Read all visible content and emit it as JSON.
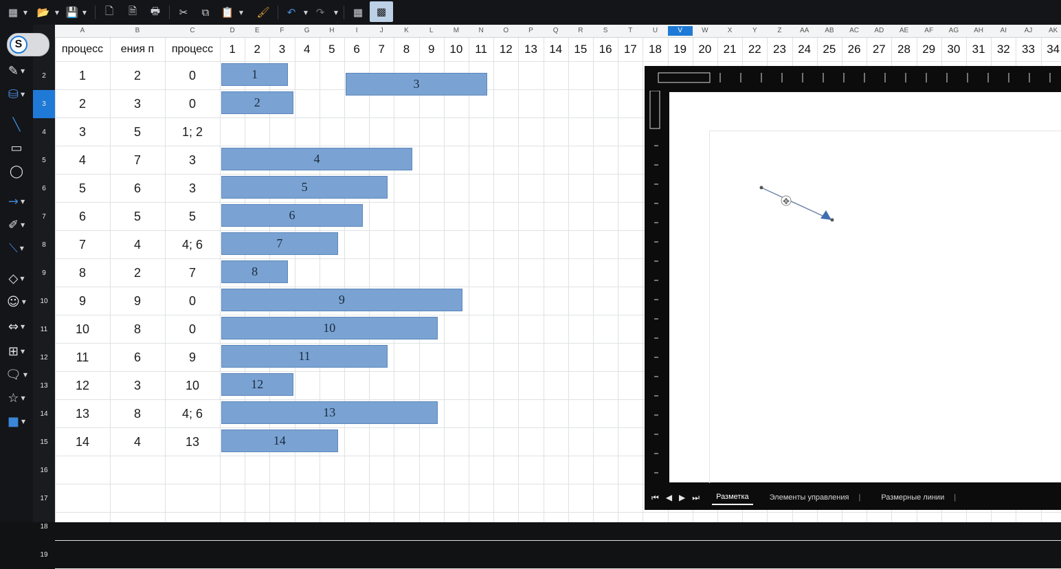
{
  "toolbar": {
    "icons": [
      "new-sheet-icon",
      "open-icon",
      "save-icon",
      "export-pdf-icon",
      "export-direct-icon",
      "print-icon",
      "cut-icon",
      "copy-icon",
      "paste-icon",
      "clone-format-icon",
      "undo-icon",
      "redo-icon",
      "grid-icon",
      "insert-image-icon"
    ]
  },
  "app_badge": "S",
  "columns": {
    "letters": [
      "A",
      "B",
      "C",
      "D",
      "E",
      "F",
      "G",
      "H",
      "I",
      "J",
      "K",
      "L",
      "M",
      "N",
      "O",
      "P",
      "Q",
      "R",
      "S",
      "T",
      "U",
      "V",
      "W",
      "X",
      "Y",
      "Z",
      "AA",
      "AB",
      "AC",
      "AD",
      "AE",
      "AF",
      "AG",
      "AH",
      "AI",
      "AJ",
      "AK"
    ],
    "selected": "V"
  },
  "rows": {
    "numbers": [
      "2",
      "3",
      "4",
      "5",
      "6",
      "7",
      "8",
      "9",
      "10",
      "11",
      "12",
      "13",
      "14",
      "15",
      "16",
      "17",
      "18",
      "19"
    ],
    "selected": "3"
  },
  "header_row": {
    "a": "процесс",
    "b": "ения п",
    "c": "процесс",
    "timeline": [
      "1",
      "2",
      "3",
      "4",
      "5",
      "6",
      "7",
      "8",
      "9",
      "10",
      "11",
      "12",
      "13",
      "14",
      "15",
      "16",
      "17",
      "18",
      "19",
      "20",
      "21",
      "22",
      "23",
      "24",
      "25",
      "26",
      "27",
      "28",
      "29",
      "30",
      "31",
      "32",
      "33",
      "34"
    ]
  },
  "table": [
    {
      "a": "1",
      "b": "2",
      "c": "0"
    },
    {
      "a": "2",
      "b": "3",
      "c": "0"
    },
    {
      "a": "3",
      "b": "5",
      "c": "1; 2"
    },
    {
      "a": "4",
      "b": "7",
      "c": "3"
    },
    {
      "a": "5",
      "b": "6",
      "c": "3"
    },
    {
      "a": "6",
      "b": "5",
      "c": "5"
    },
    {
      "a": "7",
      "b": "4",
      "c": "4; 6"
    },
    {
      "a": "8",
      "b": "2",
      "c": "7"
    },
    {
      "a": "9",
      "b": "9",
      "c": "0"
    },
    {
      "a": "10",
      "b": "8",
      "c": "0"
    },
    {
      "a": "11",
      "b": "6",
      "c": "9"
    },
    {
      "a": "12",
      "b": "3",
      "c": "10"
    },
    {
      "a": "13",
      "b": "8",
      "c": "4; 6"
    },
    {
      "a": "14",
      "b": "4",
      "c": "13"
    }
  ],
  "gantt_bars": [
    {
      "label": "1",
      "row": 0,
      "start": 1,
      "end": 2.8
    },
    {
      "label": "2",
      "row": 1,
      "start": 1,
      "end": 3
    },
    {
      "label": "3",
      "row": 0.35,
      "start": 6,
      "end": 10.8
    },
    {
      "label": "4",
      "row": 3,
      "start": 1,
      "end": 7.8
    },
    {
      "label": "5",
      "row": 4,
      "start": 1,
      "end": 6.8
    },
    {
      "label": "6",
      "row": 5,
      "start": 1,
      "end": 5.8
    },
    {
      "label": "7",
      "row": 6,
      "start": 1,
      "end": 4.8
    },
    {
      "label": "8",
      "row": 7,
      "start": 1,
      "end": 2.8
    },
    {
      "label": "9",
      "row": 8,
      "start": 1,
      "end": 9.8
    },
    {
      "label": "10",
      "row": 9,
      "start": 1,
      "end": 8.8
    },
    {
      "label": "11",
      "row": 10,
      "start": 1,
      "end": 6.8
    },
    {
      "label": "12",
      "row": 11,
      "start": 1,
      "end": 3
    },
    {
      "label": "13",
      "row": 12,
      "start": 1,
      "end": 8.8
    },
    {
      "label": "14",
      "row": 13,
      "start": 1,
      "end": 4.8
    }
  ],
  "bar_color": "#7aa3d3",
  "left_tools": [
    "pen-color-icon",
    "fill-color-icon",
    "line-icon",
    "rectangle-icon",
    "ellipse-icon",
    "arrow-line-icon",
    "curve-icon",
    "connector-icon",
    "diamond-icon",
    "smiley-icon",
    "double-arrow-icon",
    "flowchart-icon",
    "callout-icon",
    "star-icon",
    "3d-object-icon"
  ],
  "drawing_tabs": {
    "nav": [
      "⏮",
      "◀",
      "▶",
      "⏭"
    ],
    "items": [
      "Разметка",
      "Элементы управления",
      "Размерные линии"
    ],
    "active": "Разметка"
  }
}
